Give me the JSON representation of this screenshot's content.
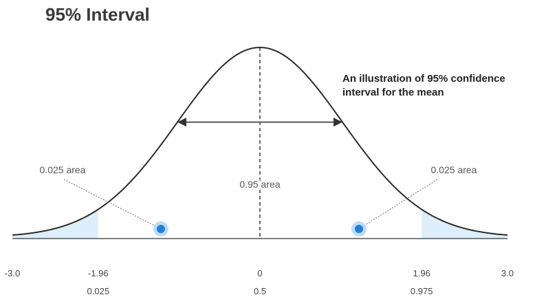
{
  "chart_data": {
    "type": "area",
    "distribution": "standard normal",
    "title": "95% Interval",
    "caption_lines": [
      "An illustration of 95% confidence",
      "interval for the mean"
    ],
    "xlim": [
      -3.0,
      3.0
    ],
    "x_ticks": [
      {
        "value": -3.0,
        "label": "-3.0",
        "prob_label": ""
      },
      {
        "value": -1.96,
        "label": "-1.96",
        "prob_label": "0.025"
      },
      {
        "value": 0,
        "label": "0",
        "prob_label": "0.5"
      },
      {
        "value": 1.96,
        "label": "1.96",
        "prob_label": "0.975"
      },
      {
        "value": 3.0,
        "label": "3.0",
        "prob_label": ""
      }
    ],
    "shaded_regions": [
      {
        "from": -3.0,
        "to": -1.96,
        "area_label": "0.025 area",
        "dot_x": -1.2
      },
      {
        "from": 1.96,
        "to": 3.0,
        "area_label": "0.025 area",
        "dot_x": 1.2
      }
    ],
    "center": {
      "value": 0,
      "area_label": "0.95 area"
    },
    "interval_arrow": {
      "from": -1.0,
      "to": 1.0
    },
    "colors": {
      "curve": "#2b2b2b",
      "shade": "#dceefb",
      "dot": "#1f80e0",
      "dot_halo": "#bcdcf7",
      "arrow": "#555555",
      "axis": "#555555"
    }
  }
}
